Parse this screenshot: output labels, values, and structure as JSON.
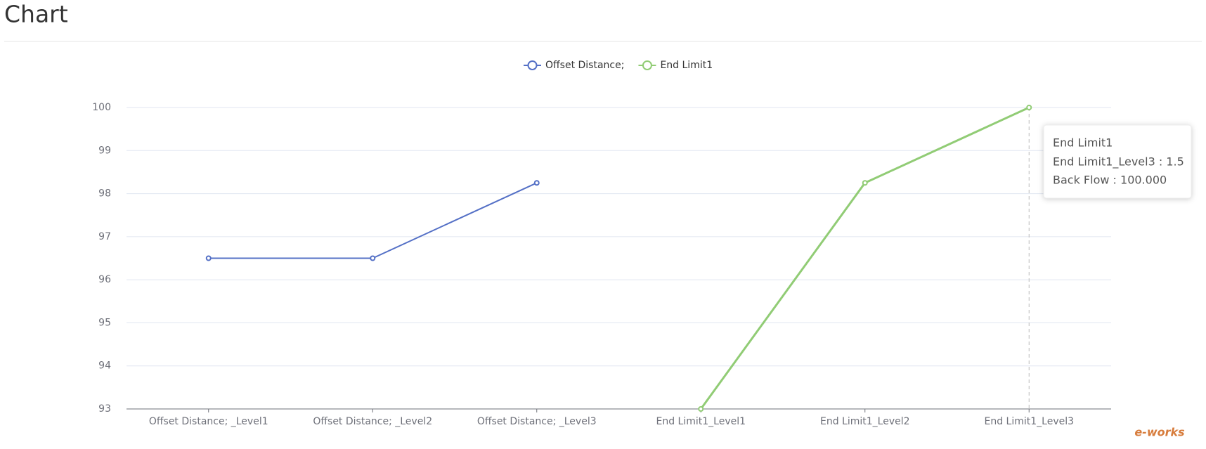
{
  "chart_data": {
    "type": "line",
    "title": "Chart",
    "categories": [
      "Offset Distance; _Level1",
      "Offset Distance; _Level2",
      "Offset Distance; _Level3",
      "End Limit1_Level1",
      "End Limit1_Level2",
      "End Limit1_Level3"
    ],
    "series": [
      {
        "name": "Offset Distance;",
        "color": "#5470c6",
        "values": [
          96.5,
          96.5,
          98.25,
          null,
          null,
          null
        ]
      },
      {
        "name": "End Limit1",
        "color": "#91cc75",
        "values": [
          null,
          null,
          null,
          93,
          98.25,
          100
        ]
      }
    ],
    "ylim": [
      93,
      100
    ],
    "yticks": [
      93,
      94,
      95,
      96,
      97,
      98,
      99,
      100
    ],
    "grid": true,
    "legend": "top",
    "tooltip": {
      "title": "End Limit1",
      "lines": [
        "End Limit1_Level3 : 1.5",
        "Back Flow : 100.000"
      ]
    }
  },
  "watermark": "e-works"
}
